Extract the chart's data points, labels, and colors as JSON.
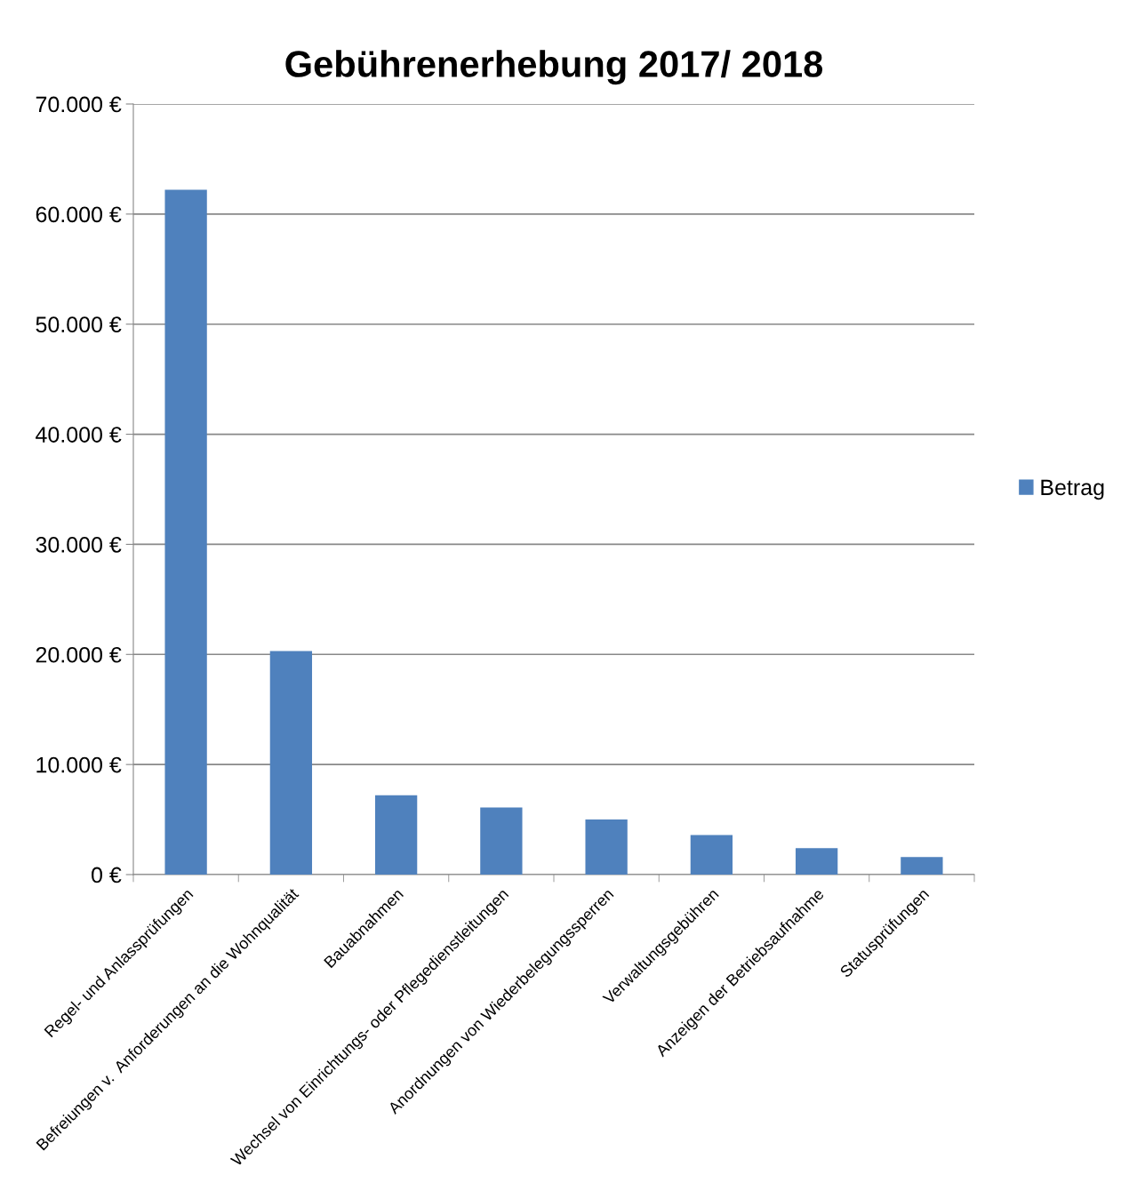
{
  "chart_data": {
    "type": "bar",
    "title": "Gebührenerhebung 2017/ 2018",
    "categories": [
      "Regel- und Anlassprüfungen",
      "Befreiungen v.  Anforderungen an die Wohnqualität",
      "Bauabnahmen",
      "Wechsel von Einrichtungs- oder Pflegedienstleitungen",
      "Anordnungen von Wiederbelegungssperren",
      "Verwaltungsgebühren",
      "Anzeigen der Betriebsaufnahme",
      "Statusprüfungen"
    ],
    "series": [
      {
        "name": "Betrag",
        "color": "#4f81bd",
        "values": [
          62200,
          20300,
          7200,
          6100,
          5000,
          3600,
          2400,
          1600
        ]
      }
    ],
    "ylim": [
      0,
      70000
    ],
    "yticks": [
      {
        "value": 0,
        "label": "0 €"
      },
      {
        "value": 10000,
        "label": "10.000 €"
      },
      {
        "value": 20000,
        "label": "20.000 €"
      },
      {
        "value": 30000,
        "label": "30.000 €"
      },
      {
        "value": 40000,
        "label": "40.000 €"
      },
      {
        "value": 50000,
        "label": "50.000 €"
      },
      {
        "value": 60000,
        "label": "60.000 €"
      },
      {
        "value": 70000,
        "label": "70.000 €"
      }
    ],
    "grid": "y",
    "legend": "right"
  }
}
